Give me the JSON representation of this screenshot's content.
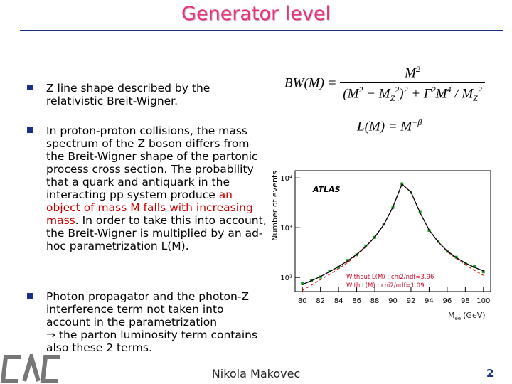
{
  "title": "Generator level",
  "bullets": [
    {
      "parts": [
        {
          "text": "Z line shape described by the relativistic Breit-Wigner."
        }
      ]
    },
    {
      "parts": [
        {
          "text": "In proton-proton collisions, the mass spectrum of the Z boson differs from the Breit-Wigner shape of the partonic process cross section. The probability that a quark and antiquark in the interacting pp system produce "
        },
        {
          "text": "an object of mass M falls with increasing mass",
          "color": "#cc0000"
        },
        {
          "text": ". In order to take this into account, the Breit-Wigner is multiplied by an ad-hoc parametrization L(M)."
        }
      ]
    },
    {
      "parts": [
        {
          "text": "Photon propagator and the photon-Z interference term not taken into account in the parametrization"
        },
        {
          "text": "⇒ the parton luminosity term contains also these 2 terms.",
          "break_before": true
        }
      ]
    }
  ],
  "formulas": {
    "bw": {
      "lhs": [
        {
          "text": "BW"
        },
        {
          "text": "(M) ="
        }
      ],
      "num": [
        {
          "text": "M"
        },
        {
          "sup": "2"
        }
      ],
      "den": [
        {
          "text": "(M"
        },
        {
          "sup": "2"
        },
        {
          "text": " − M"
        },
        {
          "sub": "Z"
        },
        {
          "sup": "2"
        },
        {
          "text": ")"
        },
        {
          "sup": "2"
        },
        {
          "text": " + Γ"
        },
        {
          "sup": "2"
        },
        {
          "text": "M"
        },
        {
          "sup": "4"
        },
        {
          "text": " / M"
        },
        {
          "sub": "Z"
        },
        {
          "sup": "2"
        }
      ]
    },
    "lum": {
      "parts": [
        {
          "text": "L(M) = M"
        },
        {
          "sup": "−β"
        }
      ]
    }
  },
  "chart_data": {
    "type": "line",
    "y_label": "Number of events",
    "x_label": {
      "symbol": "M",
      "subscript": "ee",
      "unit": "(GeV)"
    },
    "annotation": "ATLAS",
    "log_y": true,
    "x": [
      80,
      81,
      82,
      83,
      84,
      85,
      86,
      87,
      88,
      89,
      90,
      91,
      92,
      93,
      94,
      95,
      96,
      97,
      98,
      99,
      100
    ],
    "series": [
      {
        "color": "#1f9e2a",
        "style": "points",
        "values": [
          75,
          88,
          102,
          135,
          160,
          220,
          285,
          430,
          640,
          1180,
          2550,
          7600,
          5100,
          2050,
          880,
          530,
          335,
          255,
          190,
          165,
          130
        ]
      },
      {
        "name": "Without L(M) : chi2/ndf=3.96",
        "color": "#d42020",
        "style": "dashed",
        "values": [
          55,
          70,
          90,
          115,
          150,
          200,
          280,
          410,
          650,
          1150,
          2600,
          7500,
          5200,
          2000,
          900,
          520,
          330,
          240,
          180,
          140,
          110
        ]
      },
      {
        "name": "With L(M) : chi2/ndf=1.09",
        "color": "#000000",
        "style": "solid",
        "values": [
          72,
          86,
          104,
          130,
          165,
          215,
          290,
          420,
          650,
          1150,
          2600,
          7500,
          5200,
          2000,
          900,
          520,
          340,
          250,
          195,
          160,
          135
        ]
      }
    ],
    "xlim": [
      79.2,
      100.8
    ],
    "ylim": [
      52,
      14000
    ],
    "xticks": [
      80,
      82,
      84,
      86,
      88,
      90,
      92,
      94,
      96,
      98,
      100
    ],
    "yticks": [
      {
        "value": 100,
        "label": "10²"
      },
      {
        "value": 1000,
        "label": "10³"
      },
      {
        "value": 10000,
        "label": "10⁴"
      }
    ]
  },
  "footer": {
    "author": "Nikola Makovec",
    "page": 2
  }
}
